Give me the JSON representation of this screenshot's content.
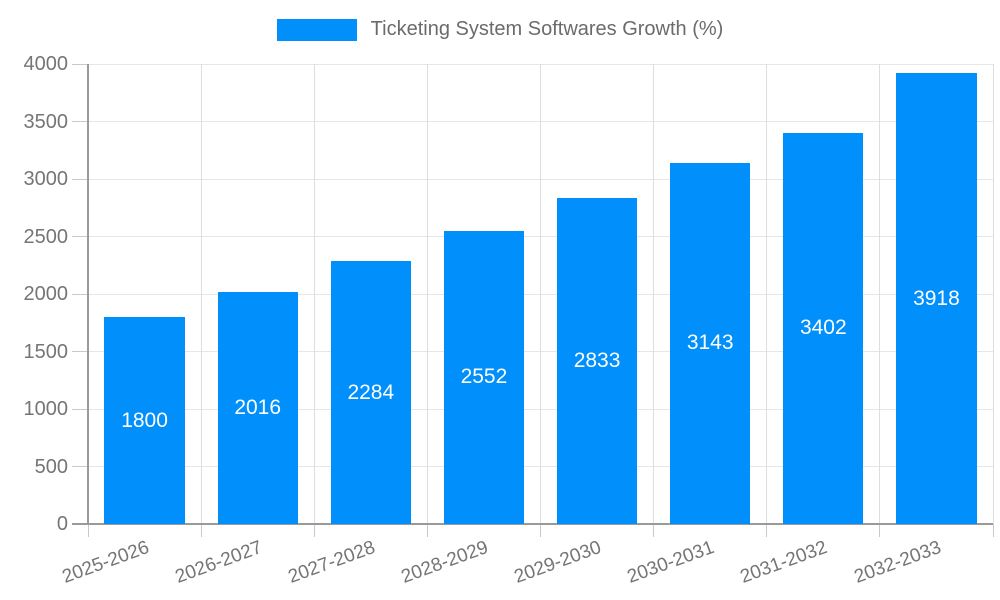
{
  "legend": {
    "label": "Ticketing System Softwares Growth (%)"
  },
  "chart_data": {
    "type": "bar",
    "title": "Ticketing System Softwares Growth (%)",
    "categories": [
      "2025-2026",
      "2026-2027",
      "2027-2028",
      "2028-2029",
      "2029-2030",
      "2030-2031",
      "2031-2032",
      "2032-2033"
    ],
    "values": [
      1800,
      2016,
      2284,
      2552,
      2833,
      3143,
      3402,
      3918
    ],
    "bar_value_labels": [
      "1800",
      "2016",
      "2284",
      "2552",
      "2833",
      "3143",
      "3402",
      "3918"
    ],
    "xlabel": "",
    "ylabel": "",
    "ylim": [
      0,
      4000
    ],
    "yticks": [
      0,
      500,
      1000,
      1500,
      2000,
      2500,
      3000,
      3500,
      4000
    ],
    "grid": true,
    "legend_position": "top-center",
    "colors": {
      "bar": "#008FFB",
      "grid_horizontal": "#e6e6e6",
      "grid_vertical": "#dedede",
      "axis_line": "#9a9a9a",
      "tick_mark": "#c9c9c9",
      "axis_text": "#757575",
      "legend_text": "#6b6b6b",
      "bar_label_text": "#ffffff",
      "background": "#ffffff"
    }
  }
}
